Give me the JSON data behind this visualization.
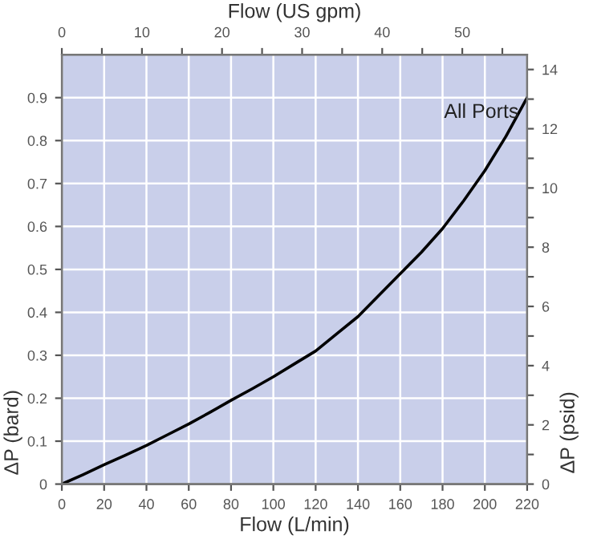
{
  "chart_data": {
    "type": "line",
    "xlabel": "Flow (L/min)",
    "ylabel": "ΔP (bard)",
    "y2label": "ΔP (psid)",
    "x2label": "Flow (US gpm)",
    "x": [
      0,
      10,
      20,
      30,
      40,
      50,
      60,
      70,
      80,
      90,
      100,
      110,
      120,
      130,
      140,
      150,
      160,
      170,
      180,
      190,
      200,
      210,
      220
    ],
    "series": [
      {
        "name": "All Ports",
        "color": "#000000",
        "values": [
          0,
          0.022,
          0.045,
          0.067,
          0.09,
          0.115,
          0.14,
          0.167,
          0.195,
          0.222,
          0.25,
          0.28,
          0.31,
          0.35,
          0.39,
          0.44,
          0.49,
          0.54,
          0.595,
          0.66,
          0.73,
          0.81,
          0.9
        ]
      }
    ],
    "xlim": [
      0,
      220
    ],
    "xticks": [
      0,
      20,
      40,
      60,
      80,
      100,
      120,
      140,
      160,
      180,
      200,
      220
    ],
    "ylim": [
      0,
      1.0
    ],
    "yticks": [
      0,
      0.1,
      0.2,
      0.3,
      0.4,
      0.5,
      0.6,
      0.7,
      0.8,
      0.9
    ],
    "y2lim": [
      0,
      14.5
    ],
    "y2ticks": [
      0,
      {
        "value": 1,
        "label": null
      },
      2,
      {
        "value": 3,
        "label": null
      },
      4,
      {
        "value": 5,
        "label": null
      },
      6,
      {
        "value": 7,
        "label": null
      },
      8,
      {
        "value": 9,
        "label": null
      },
      10,
      {
        "value": 11,
        "label": null
      },
      12,
      {
        "value": 13,
        "label": null
      },
      14
    ],
    "x2lim": [
      0,
      58.1
    ],
    "x2ticks": [
      0,
      {
        "value": 5,
        "label": null
      },
      10,
      {
        "value": 15,
        "label": null
      },
      20,
      {
        "value": 25,
        "label": null
      },
      30,
      {
        "value": 35,
        "label": null
      },
      40,
      {
        "value": 45,
        "label": null
      },
      50,
      {
        "value": 55,
        "label": null
      }
    ],
    "grid": true,
    "legend": false,
    "marker": "none",
    "line_style": "solid"
  }
}
